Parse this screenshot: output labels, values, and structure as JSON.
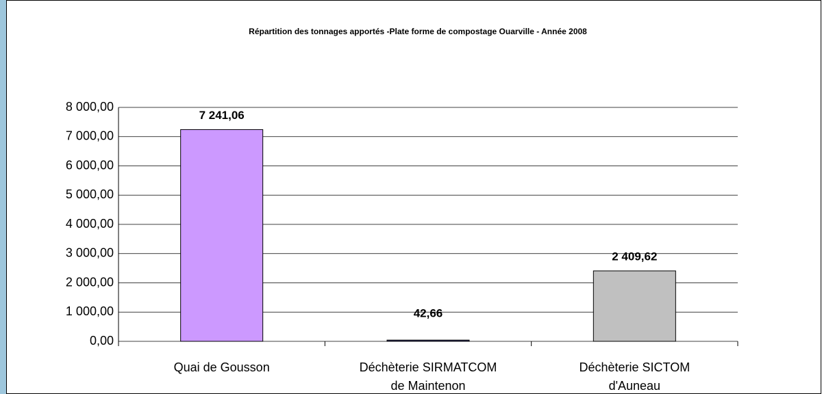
{
  "chart_data": {
    "type": "bar",
    "title": "Répartition des tonnages apportés -Plate forme de compostage Ouarville - Année 2008",
    "categories": [
      [
        "Quai  de Gousson"
      ],
      [
        "Déchèterie SIRMATCOM",
        "de Maintenon"
      ],
      [
        "Déchèterie SICTOM",
        "d'Auneau"
      ]
    ],
    "values": [
      7241.06,
      42.66,
      2409.62
    ],
    "value_labels": [
      "7 241,06",
      "42,66",
      "2 409,62"
    ],
    "colors": [
      "#cc99ff",
      "#333366",
      "#c0c0c0"
    ],
    "ylim": [
      0,
      8000
    ],
    "yticks": [
      {
        "value": 0,
        "label": "0,00"
      },
      {
        "value": 1000,
        "label": "1 000,00"
      },
      {
        "value": 2000,
        "label": "2 000,00"
      },
      {
        "value": 3000,
        "label": "3 000,00"
      },
      {
        "value": 4000,
        "label": "4 000,00"
      },
      {
        "value": 5000,
        "label": "5 000,00"
      },
      {
        "value": 6000,
        "label": "6 000,00"
      },
      {
        "value": 7000,
        "label": "7 000,00"
      },
      {
        "value": 8000,
        "label": "8 000,00"
      }
    ],
    "grid": true
  }
}
